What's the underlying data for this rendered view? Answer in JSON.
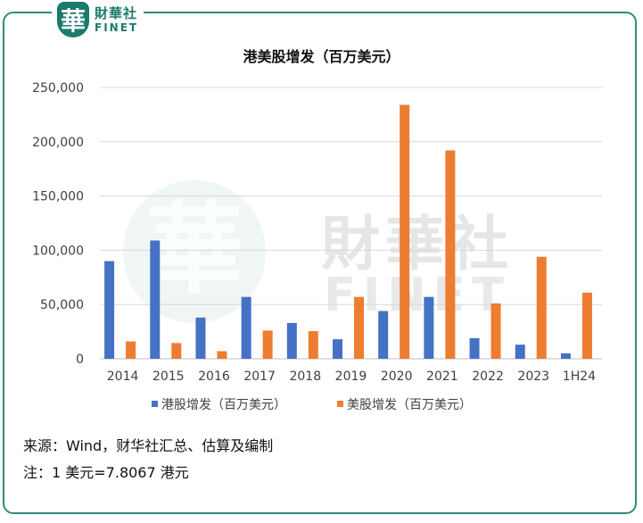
{
  "header": {
    "logo_seal": "華",
    "logo_cn": "財華社",
    "logo_en": "FINET"
  },
  "watermark": {
    "cn": "財華社",
    "en": "FINET",
    "seal": "華"
  },
  "chart_data": {
    "type": "bar",
    "title": "港美股增发（百万美元）",
    "categories": [
      "2014",
      "2015",
      "2016",
      "2017",
      "2018",
      "2019",
      "2020",
      "2021",
      "2022",
      "2023",
      "1H24"
    ],
    "series": [
      {
        "name": "港股增发（百万美元）",
        "color": "#4472c4",
        "values": [
          90000,
          109000,
          38000,
          57000,
          33000,
          18000,
          44000,
          57000,
          19000,
          13000,
          5000
        ]
      },
      {
        "name": "美股增发（百万美元）",
        "color": "#ed7d31",
        "values": [
          16000,
          14500,
          7000,
          26000,
          25500,
          57000,
          234000,
          192000,
          51000,
          94000,
          61000
        ]
      }
    ],
    "ylim": [
      0,
      250000
    ],
    "yticks": [
      "0",
      "50,000",
      "100,000",
      "150,000",
      "200,000",
      "250,000"
    ],
    "ytick_values": [
      0,
      50000,
      100000,
      150000,
      200000,
      250000
    ],
    "grid": true,
    "legend_position": "bottom"
  },
  "footer": {
    "source": "来源：Wind，财华社汇总、估算及编制",
    "note": "注：1 美元=7.8067 港元"
  }
}
